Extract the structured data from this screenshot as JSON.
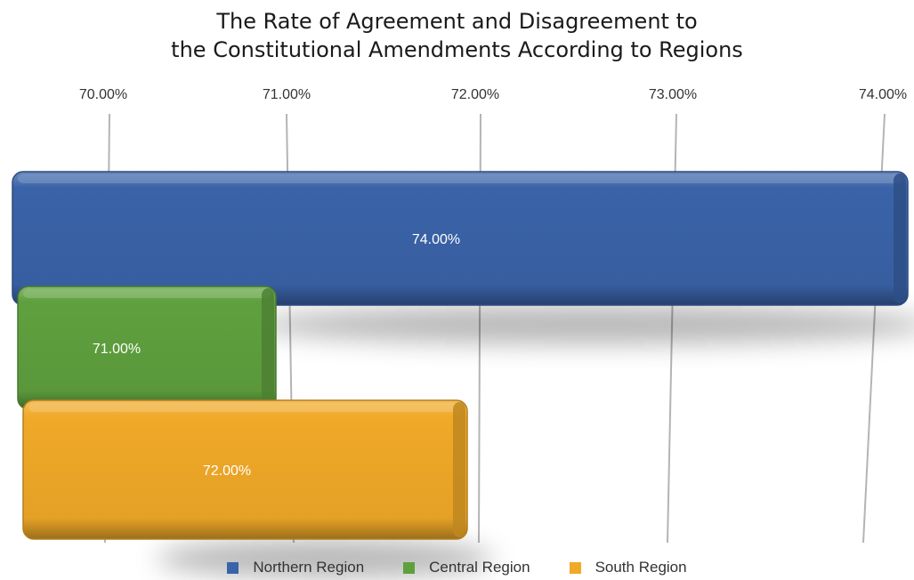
{
  "chart_data": {
    "type": "bar",
    "orientation": "horizontal",
    "title_lines": [
      "The Rate of Agreement and Disagreement to",
      "the Constitutional Amendments According to Regions"
    ],
    "xlim": [
      70,
      74
    ],
    "x_ticks": [
      70,
      71,
      72,
      73,
      74
    ],
    "x_tick_labels": [
      "70.00%",
      "71.00%",
      "72.00%",
      "73.00%",
      "74.00%"
    ],
    "axis_position": "top",
    "grid": true,
    "legend_position": "bottom",
    "series": [
      {
        "name": "Northern Region",
        "value": 74,
        "label": "74.00%",
        "color": "#3a63a8"
      },
      {
        "name": "Central Region",
        "value": 71,
        "label": "71.00%",
        "color": "#5fa03e"
      },
      {
        "name": "South Region",
        "value": 72,
        "label": "72.00%",
        "color": "#f0a928"
      }
    ]
  }
}
